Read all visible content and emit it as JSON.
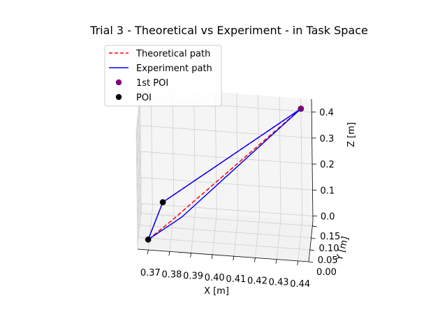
{
  "chart_data": {
    "type": "line",
    "projection": "3d",
    "title": "Trial 3 - Theoretical vs Experiment - in Task Space",
    "xlabel": "X [m]",
    "ylabel": "Y [m]",
    "zlabel": "Z [m]",
    "x_ticks": [
      "0.37",
      "0.38",
      "0.39",
      "0.40",
      "0.41",
      "0.42",
      "0.43",
      "0.44"
    ],
    "y_ticks": [
      "0.00",
      "0.05",
      "0.10",
      "0.15"
    ],
    "z_ticks": [
      "0.0",
      "0.1",
      "0.2",
      "0.3",
      "0.4"
    ],
    "xlim": [
      0.365,
      0.445
    ],
    "ylim": [
      0.0,
      0.17
    ],
    "zlim": [
      -0.02,
      0.45
    ],
    "grid": true,
    "legend_position": "top-left",
    "series": [
      {
        "name": "Theoretical path",
        "style": "dashed",
        "color": "#ff0000",
        "x": [
          0.44,
          0.375,
          0.37,
          0.38,
          0.44
        ],
        "y": [
          0.17,
          0.16,
          0.0,
          0.05,
          0.17
        ],
        "z": [
          0.41,
          0.02,
          0.02,
          0.05,
          0.41
        ]
      },
      {
        "name": "Experiment path",
        "style": "solid",
        "color": "#0000ff",
        "x": [
          0.44,
          0.375,
          0.37,
          0.385,
          0.44
        ],
        "y": [
          0.17,
          0.16,
          0.0,
          0.06,
          0.17
        ],
        "z": [
          0.41,
          0.02,
          0.02,
          0.06,
          0.41
        ]
      }
    ],
    "markers": [
      {
        "name": "1st POI",
        "color": "#800080",
        "x": 0.44,
        "y": 0.17,
        "z": 0.41
      },
      {
        "name": "POI",
        "color": "#000000",
        "x": 0.375,
        "y": 0.16,
        "z": 0.02
      },
      {
        "name": "POI",
        "color": "#000000",
        "x": 0.37,
        "y": 0.0,
        "z": 0.02
      }
    ],
    "legend": [
      {
        "label": "Theoretical path",
        "kind": "dashed-line",
        "color": "#ff0000"
      },
      {
        "label": "Experiment path",
        "kind": "solid-line",
        "color": "#0000ff"
      },
      {
        "label": "1st POI",
        "kind": "marker",
        "color": "#800080"
      },
      {
        "label": "POI",
        "kind": "marker",
        "color": "#000000"
      }
    ]
  }
}
